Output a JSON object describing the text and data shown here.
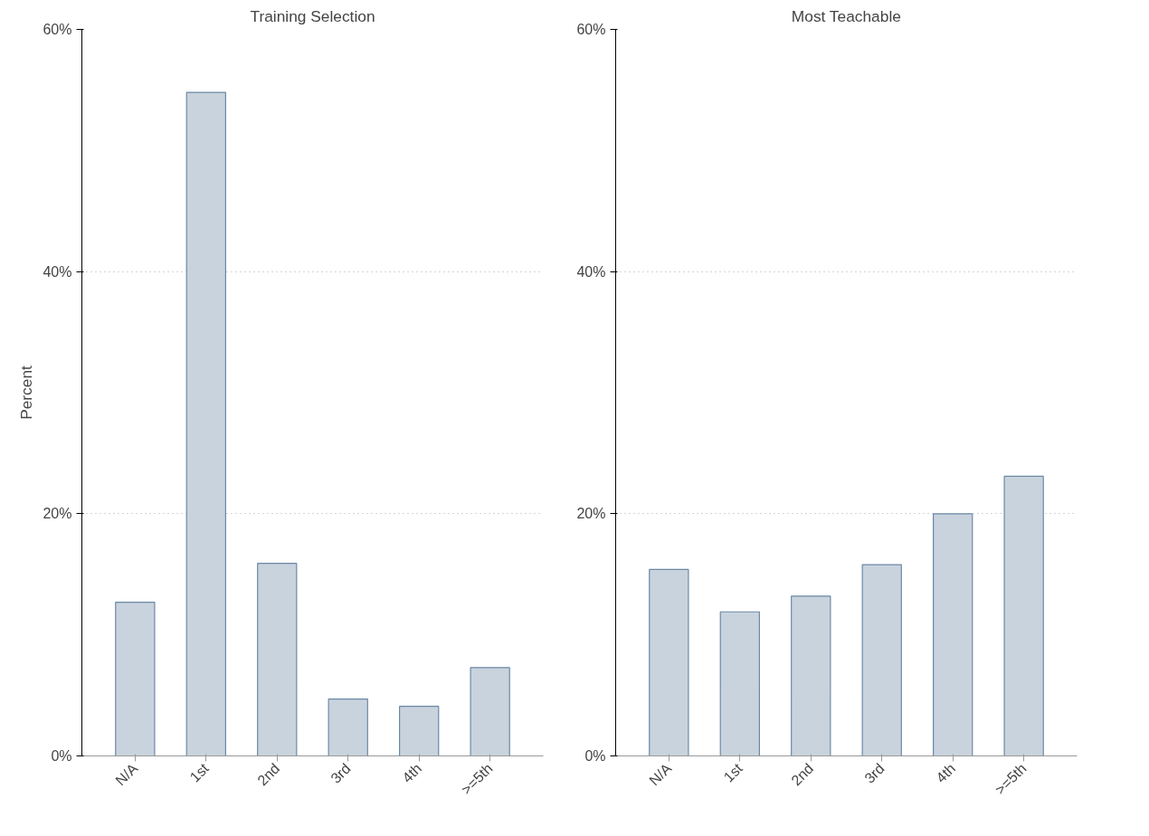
{
  "chart_data": [
    {
      "type": "bar",
      "title": "Training Selection",
      "ylabel": "Percent",
      "categories": [
        "N/A",
        "1st",
        "2nd",
        "3rd",
        "4th",
        ">=5th"
      ],
      "values": [
        12.7,
        54.8,
        15.9,
        4.7,
        4.1,
        7.3
      ],
      "color": "#c9d3dd",
      "ylim": [
        0,
        60
      ],
      "yticks": [
        {
          "value": 0,
          "label": "0%"
        },
        {
          "value": 20,
          "label": "20%"
        },
        {
          "value": 40,
          "label": "40%"
        },
        {
          "value": 60,
          "label": "60%"
        }
      ],
      "grid": "y"
    },
    {
      "type": "bar",
      "title": "Most Teachable",
      "categories": [
        "N/A",
        "1st",
        "2nd",
        "3rd",
        "4th",
        ">=5th"
      ],
      "values": [
        15.4,
        11.9,
        13.2,
        15.8,
        20.0,
        23.1
      ],
      "color": "#c9d3dd",
      "ylim": [
        0,
        60
      ],
      "yticks": [
        {
          "value": 0,
          "label": "0%"
        },
        {
          "value": 20,
          "label": "20%"
        },
        {
          "value": 40,
          "label": "40%"
        },
        {
          "value": 60,
          "label": "60%"
        }
      ],
      "grid": "y"
    }
  ]
}
